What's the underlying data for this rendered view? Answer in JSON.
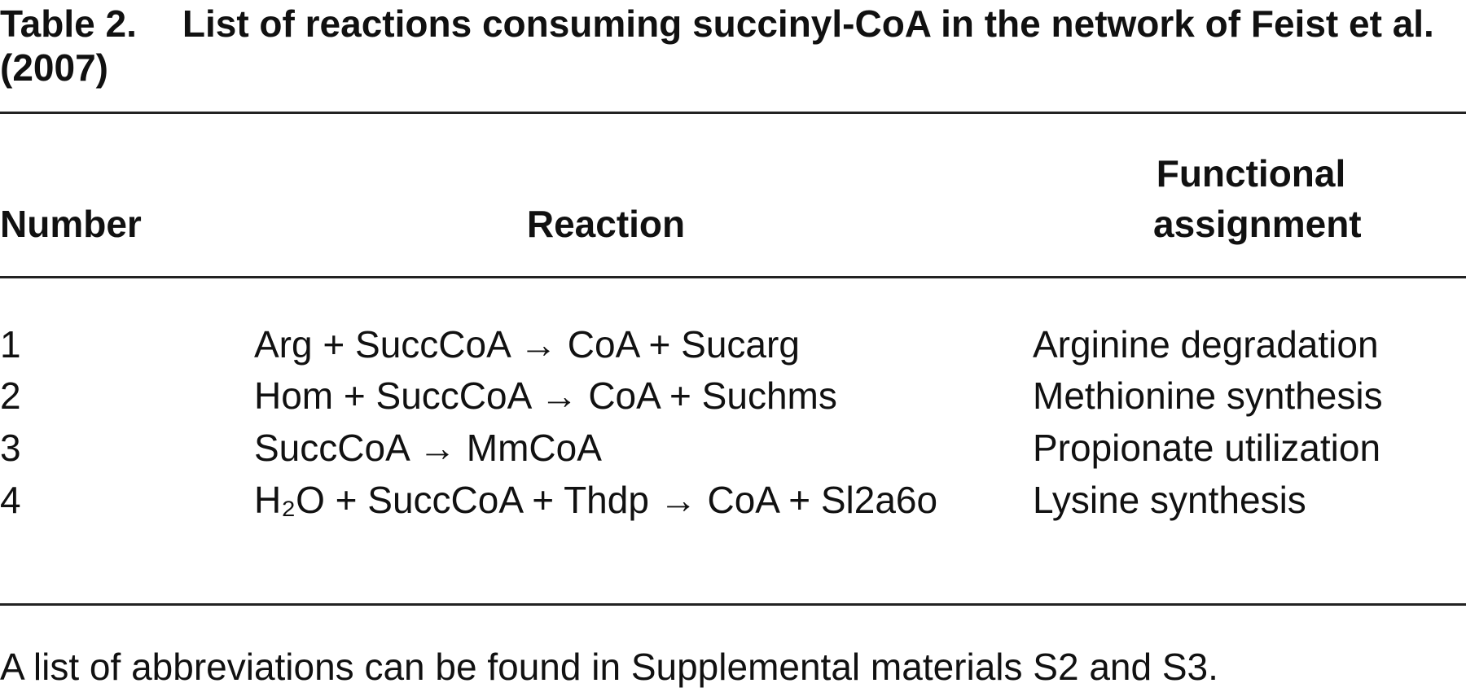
{
  "caption": {
    "label": "Table 2.",
    "title": "List of reactions consuming succinyl-CoA in the network of Feist et al. (2007)"
  },
  "table": {
    "columns": [
      "Number",
      "Reaction",
      "Functional assignment"
    ],
    "rows": [
      [
        "1",
        "Arg + SuccCoA → CoA + Sucarg",
        "Arginine degradation"
      ],
      [
        "2",
        "Hom + SuccCoA → CoA + Suchms",
        "Methionine synthesis"
      ],
      [
        "3",
        "SuccCoA → MmCoA",
        "Propionate utilization"
      ],
      [
        "4",
        "H₂O + SuccCoA + Thdp → CoA + Sl2a6o",
        "Lysine synthesis"
      ]
    ]
  },
  "footnote": "A list of abbreviations can be found in Supplemental materials S2 and S3."
}
